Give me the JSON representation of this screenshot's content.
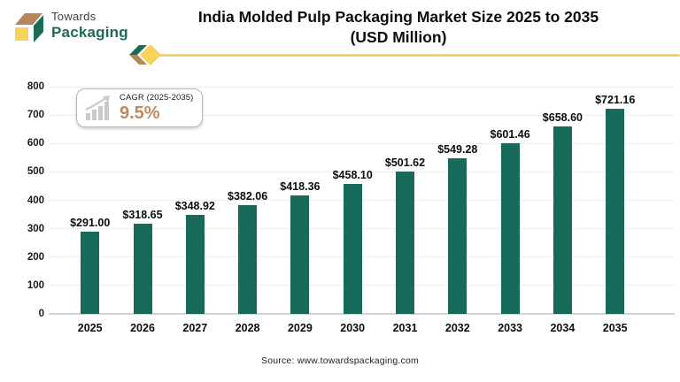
{
  "header": {
    "logo_line1": "Towards",
    "logo_line2": "Packaging",
    "title_line1": "India Molded Pulp Packaging Market Size 2025 to 2035",
    "title_line2": "(USD Million)"
  },
  "badge": {
    "label": "CAGR (2025-2035)",
    "value": "9.5%"
  },
  "chart_data": {
    "type": "bar",
    "title": "India Molded Pulp Packaging Market Size 2025 to 2035 (USD Million)",
    "categories": [
      "2025",
      "2026",
      "2027",
      "2028",
      "2029",
      "2030",
      "2031",
      "2032",
      "2033",
      "2034",
      "2035"
    ],
    "values": [
      291.0,
      318.65,
      348.92,
      382.06,
      418.36,
      458.1,
      501.62,
      549.28,
      601.46,
      658.6,
      721.16
    ],
    "value_labels": [
      "$291.00",
      "$318.65",
      "$348.92",
      "$382.06",
      "$418.36",
      "$458.10",
      "$501.62",
      "$549.28",
      "$601.46",
      "$658.60",
      "$721.16"
    ],
    "xlabel": "",
    "ylabel": "",
    "ylim": [
      0,
      800
    ],
    "yticks": [
      0,
      100,
      200,
      300,
      400,
      500,
      600,
      700,
      800
    ],
    "grid": true,
    "legend": "none",
    "bar_color": "#17695A"
  },
  "footer": {
    "source": "Source: www.towardspackaging.com"
  },
  "colors": {
    "bar_green": "#17695A",
    "brand_green": "#1C6B58",
    "brand_tan": "#B3875A",
    "brand_yellow": "#F7D35C",
    "cagr_value_color": "#C08A5E",
    "gridline": "#ededed"
  }
}
